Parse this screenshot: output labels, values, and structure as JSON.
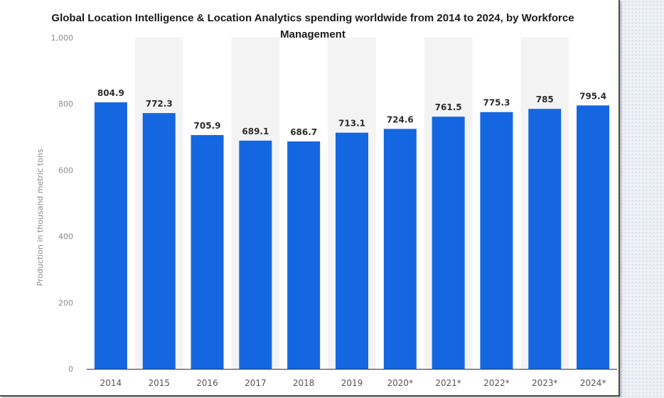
{
  "chart_data": {
    "type": "bar",
    "title": "Global Location Intelligence & Location Analytics spending worldwide from 2014 to 2024, by Workforce Management",
    "xlabel": "",
    "ylabel": "Production in thousand metric tons",
    "categories": [
      "2014",
      "2015",
      "2016",
      "2017",
      "2018",
      "2019",
      "2020*",
      "2021*",
      "2022*",
      "2023*",
      "2024*"
    ],
    "values": [
      804.9,
      772.3,
      705.9,
      689.1,
      686.7,
      713.1,
      724.6,
      761.5,
      775.3,
      785,
      795.4
    ],
    "value_labels": [
      "804.9",
      "772.3",
      "705.9",
      "689.1",
      "686.7",
      "713.1",
      "724.6",
      "761.5",
      "775.3",
      "785",
      "795.4"
    ],
    "ylim": [
      0,
      1000
    ],
    "yticks": [
      0,
      200,
      400,
      600,
      800,
      1000
    ],
    "ytick_labels": [
      "0",
      "200",
      "400",
      "600",
      "800",
      "1,000"
    ],
    "grid": false,
    "alternating_column_bands": true,
    "bar_color": "#1467e1",
    "band_color": "#f3f3f3"
  }
}
